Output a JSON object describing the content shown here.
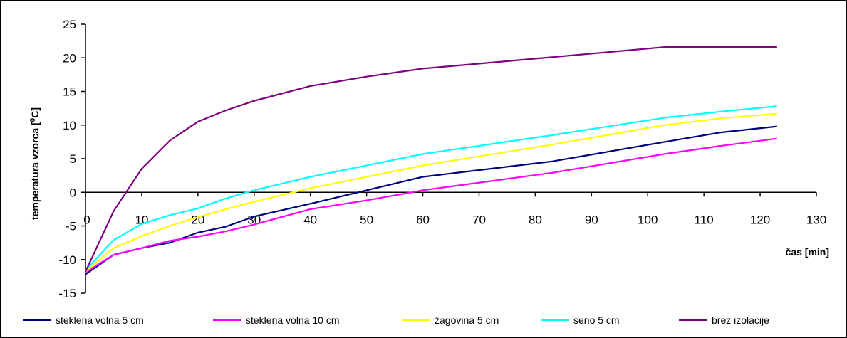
{
  "chart_data": {
    "type": "line",
    "title": "",
    "xlabel": "čas [min]",
    "ylabel": "temperatura vzorca [°C]",
    "ylabel_parts": {
      "pre": "temperatura vzorca [",
      "sup": "0",
      "post": "C]"
    },
    "xlim": [
      0,
      130
    ],
    "ylim": [
      -15,
      25
    ],
    "xticks": [
      "0",
      "10",
      "20",
      "30",
      "40",
      "50",
      "60",
      "70",
      "80",
      "90",
      "100",
      "110",
      "120",
      "130"
    ],
    "yticks": [
      "-15",
      "-10",
      "-5",
      "0",
      "5",
      "10",
      "15",
      "20",
      "25"
    ],
    "grid": false,
    "legend_position": "bottom",
    "series": [
      {
        "name": "steklena volna 5 cm",
        "color": "#000080",
        "x": [
          0,
          5,
          10,
          15,
          20,
          25,
          30,
          40,
          50,
          60,
          83,
          103,
          113,
          123
        ],
        "y": [
          -12.2,
          -9.3,
          -8.3,
          -7.5,
          -6.0,
          -5.1,
          -3.6,
          -1.7,
          0.3,
          2.3,
          4.6,
          7.5,
          8.9,
          9.8
        ]
      },
      {
        "name": "steklena volna 10 cm",
        "color": "#ff00ff",
        "x": [
          0,
          5,
          10,
          15,
          20,
          25,
          30,
          40,
          50,
          60,
          83,
          103,
          113,
          123
        ],
        "y": [
          -11.9,
          -9.3,
          -8.3,
          -7.2,
          -6.6,
          -5.8,
          -4.8,
          -2.5,
          -1.2,
          0.3,
          2.9,
          5.7,
          6.9,
          8.0
        ]
      },
      {
        "name": "žagovina 5 cm",
        "color": "#ffff00",
        "x": [
          0,
          5,
          10,
          15,
          20,
          25,
          30,
          40,
          50,
          60,
          83,
          103,
          113,
          123
        ],
        "y": [
          -11.8,
          -8.3,
          -6.5,
          -5.0,
          -3.7,
          -2.5,
          -1.4,
          0.6,
          2.3,
          4.0,
          7.1,
          10.0,
          11.0,
          11.7
        ]
      },
      {
        "name": "seno 5 cm",
        "color": "#00ffff",
        "x": [
          0,
          5,
          10,
          15,
          20,
          25,
          30,
          40,
          50,
          60,
          83,
          103,
          113,
          123
        ],
        "y": [
          -11.6,
          -7.1,
          -4.7,
          -3.4,
          -2.4,
          -0.9,
          0.3,
          2.3,
          4.0,
          5.7,
          8.5,
          11.1,
          12.0,
          12.8
        ]
      },
      {
        "name": "brez izolacije",
        "color": "#800080",
        "x": [
          0,
          5,
          10,
          15,
          20,
          25,
          30,
          40,
          50,
          60,
          83,
          103,
          113,
          123
        ],
        "y": [
          -11.8,
          -2.8,
          3.5,
          7.7,
          10.5,
          12.2,
          13.6,
          15.8,
          17.2,
          18.4,
          20.1,
          21.6,
          21.6,
          21.6
        ]
      }
    ]
  }
}
